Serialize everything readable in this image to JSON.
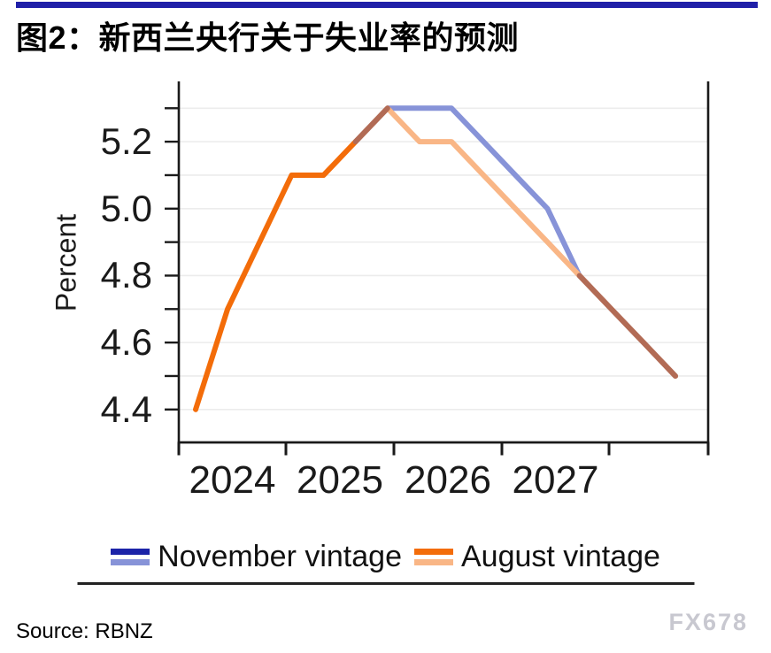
{
  "page": {
    "title": "图2：新西兰央行关于失业率的预测",
    "source": "Source: RBNZ",
    "watermark": "FX678",
    "accent_bar_color": "#2020a8"
  },
  "chart_data": {
    "type": "line",
    "title": "图2：新西兰央行关于失业率的预测",
    "xlabel": "",
    "ylabel": "Percent",
    "ylim": [
      4.3,
      5.37
    ],
    "yticks_labeled": [
      4.4,
      4.6,
      4.8,
      5.0,
      5.2
    ],
    "yticks_minor": [
      4.5,
      4.7,
      4.9,
      5.1,
      5.3
    ],
    "grid": "horizontal every 0.1, light gray",
    "x_axis": {
      "tick_boundaries_years": [
        2024,
        2025,
        2026,
        2027,
        2028
      ],
      "labels_between_ticks": true,
      "xticklabels": [
        "2024",
        "2025",
        "2026",
        "2027"
      ]
    },
    "categories": [
      "2024Q1",
      "2024Q2",
      "2024Q3",
      "2024Q4",
      "2025Q1",
      "2025Q2",
      "2025Q3",
      "2025Q4",
      "2026Q1",
      "2026Q2",
      "2026Q3",
      "2026Q4",
      "2027Q1",
      "2027Q2",
      "2027Q3",
      "2027Q4"
    ],
    "series": [
      {
        "name": "November vintage",
        "history_color": "#1b23a8",
        "forecast_color": "#8793d8",
        "values": [
          null,
          null,
          null,
          null,
          null,
          5.2,
          5.3,
          5.3,
          5.3,
          5.2,
          5.1,
          5.0,
          4.8,
          4.7,
          4.6,
          4.5
        ]
      },
      {
        "name": "August vintage",
        "history_color": "#f36c09",
        "forecast_color": "#f9b686",
        "history_through": "2025Q2",
        "values": [
          4.4,
          4.7,
          4.9,
          5.1,
          5.1,
          5.2,
          5.3,
          5.2,
          5.2,
          5.1,
          5.0,
          4.9,
          4.8,
          4.7,
          4.6,
          4.5
        ]
      }
    ],
    "overlap_color": "#b26b55",
    "gridline_color": "#ececec",
    "axis_color": "#1a1a1a",
    "legend_position": "bottom"
  },
  "legend": {
    "items": [
      {
        "label": "November vintage",
        "colors": [
          "#1b23a8",
          "#8793d8"
        ]
      },
      {
        "label": "August vintage",
        "colors": [
          "#f36c09",
          "#f9b686"
        ]
      }
    ]
  }
}
